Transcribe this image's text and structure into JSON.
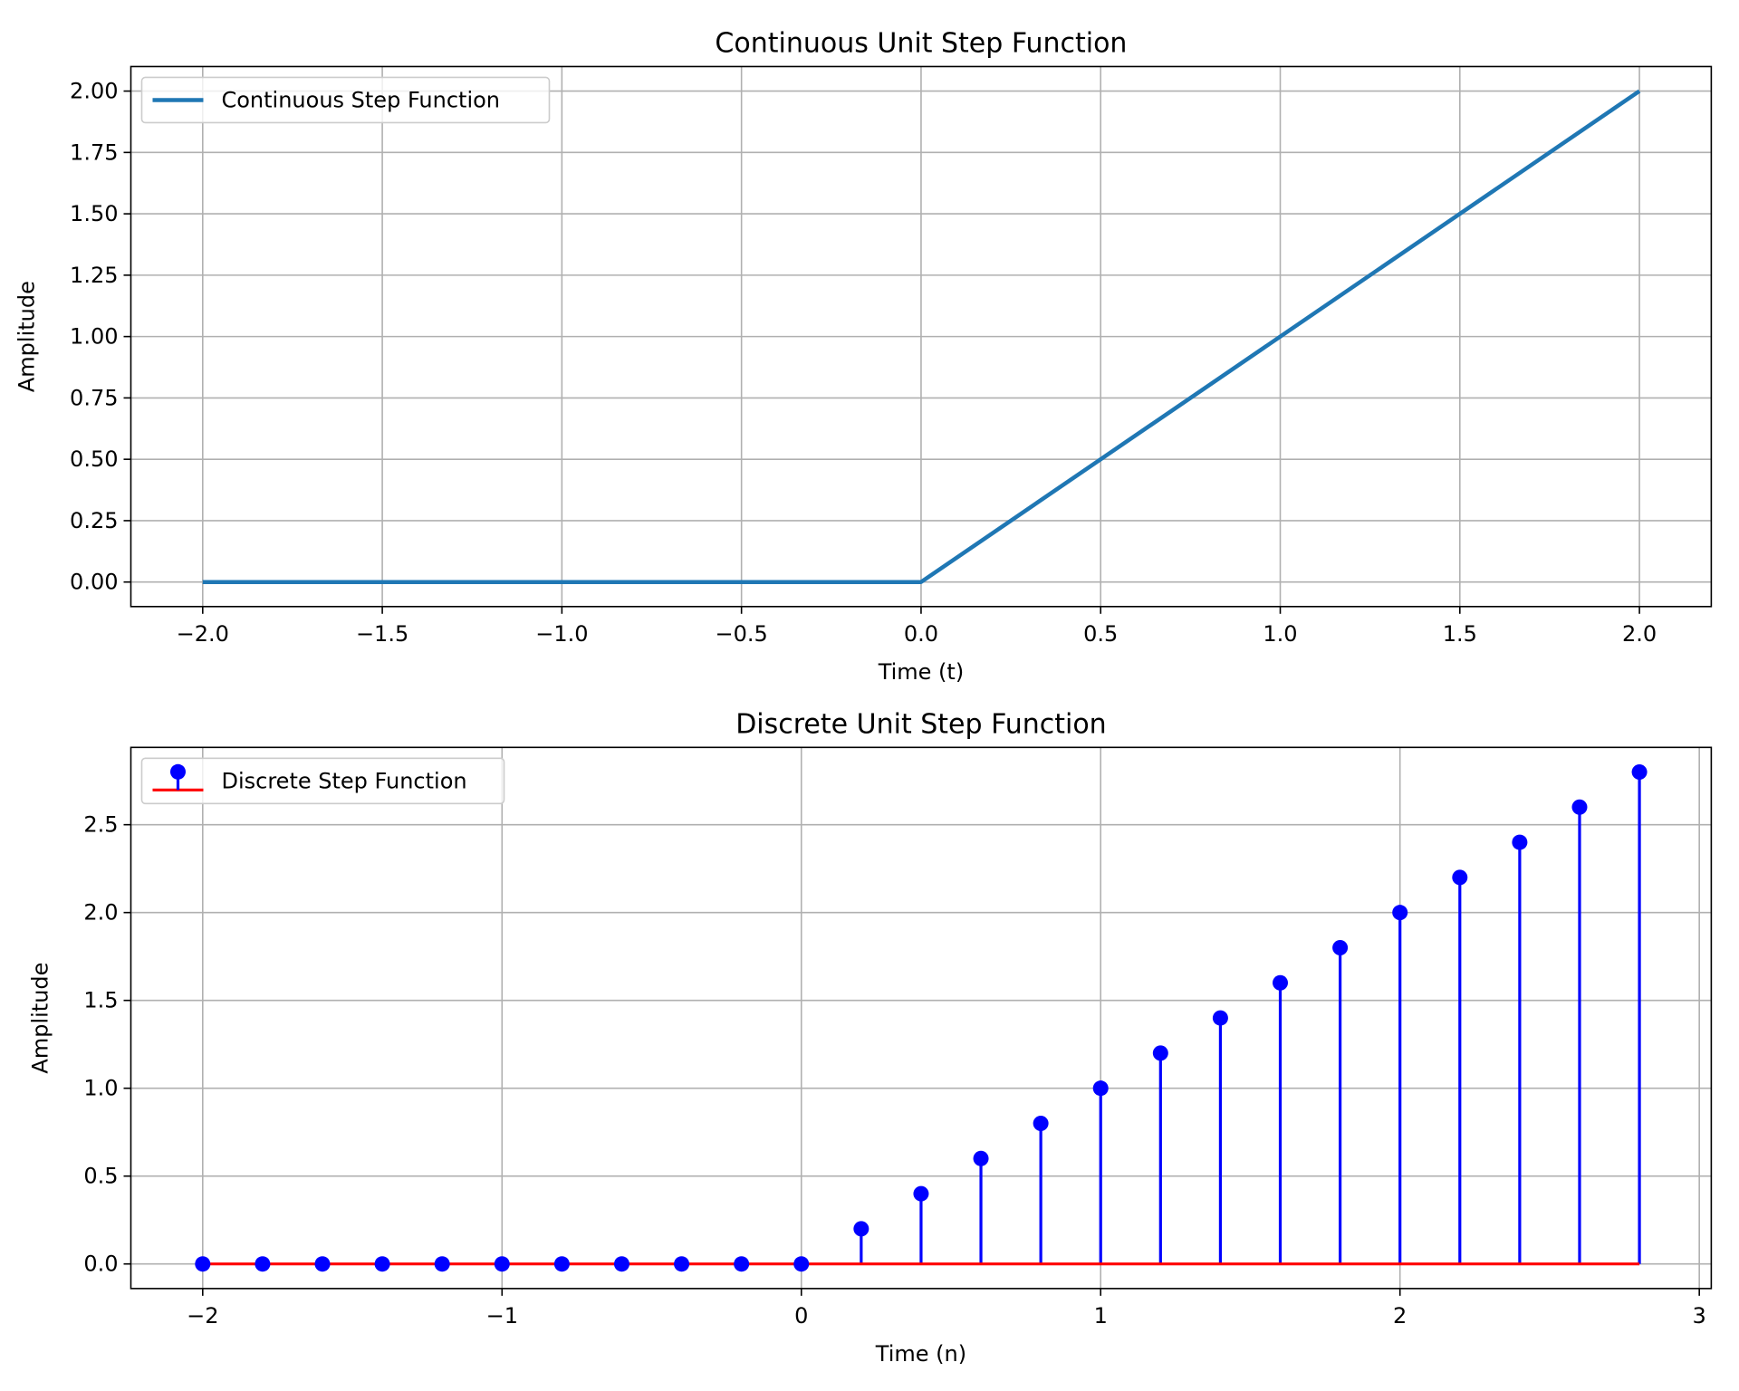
{
  "chart_data": [
    {
      "type": "line",
      "title": "Continuous Unit Step Function",
      "xlabel": "Time (t)",
      "ylabel": "Amplitude",
      "xlim": [
        -2.2,
        2.2
      ],
      "ylim": [
        -0.1,
        2.1
      ],
      "xticks": [
        -2.0,
        -1.5,
        -1.0,
        -0.5,
        0.0,
        0.5,
        1.0,
        1.5,
        2.0
      ],
      "xtick_labels": [
        "−2.0",
        "−1.5",
        "−1.0",
        "−0.5",
        "0.0",
        "0.5",
        "1.0",
        "1.5",
        "2.0"
      ],
      "yticks": [
        0.0,
        0.25,
        0.5,
        0.75,
        1.0,
        1.25,
        1.5,
        1.75,
        2.0
      ],
      "ytick_labels": [
        "0.00",
        "0.25",
        "0.50",
        "0.75",
        "1.00",
        "1.25",
        "1.50",
        "1.75",
        "2.00"
      ],
      "grid": true,
      "legend_position": "top-left",
      "series": [
        {
          "name": "Continuous Step Function",
          "color": "#1f77b4",
          "x": [
            -2.0,
            0.0,
            2.0
          ],
          "y": [
            0.0,
            0.0,
            2.0
          ]
        }
      ]
    },
    {
      "type": "stem",
      "title": "Discrete Unit Step Function",
      "xlabel": "Time (n)",
      "ylabel": "Amplitude",
      "xlim": [
        -2.24,
        3.04
      ],
      "ylim": [
        -0.14,
        2.94
      ],
      "xticks": [
        -2,
        -1,
        0,
        1,
        2,
        3
      ],
      "xtick_labels": [
        "−2",
        "−1",
        "0",
        "1",
        "2",
        "3"
      ],
      "yticks": [
        0.0,
        0.5,
        1.0,
        1.5,
        2.0,
        2.5
      ],
      "ytick_labels": [
        "0.0",
        "0.5",
        "1.0",
        "1.5",
        "2.0",
        "2.5"
      ],
      "grid": true,
      "legend_position": "top-left",
      "series": [
        {
          "name": "Discrete Step Function",
          "marker_color": "#0000ff",
          "stem_color": "#0000ff",
          "baseline_color": "#ff0000",
          "x": [
            -2.0,
            -1.8,
            -1.6,
            -1.4,
            -1.2,
            -1.0,
            -0.8,
            -0.6,
            -0.4,
            -0.2,
            0.0,
            0.2,
            0.4,
            0.6,
            0.8,
            1.0,
            1.2,
            1.4,
            1.6,
            1.8,
            2.0,
            2.2,
            2.4,
            2.6,
            2.8
          ],
          "y": [
            0,
            0,
            0,
            0,
            0,
            0,
            0,
            0,
            0,
            0,
            0,
            0.2,
            0.4,
            0.6,
            0.8,
            1.0,
            1.2,
            1.4,
            1.6,
            1.8,
            2.0,
            2.2,
            2.4,
            2.6,
            2.8
          ]
        }
      ]
    }
  ]
}
